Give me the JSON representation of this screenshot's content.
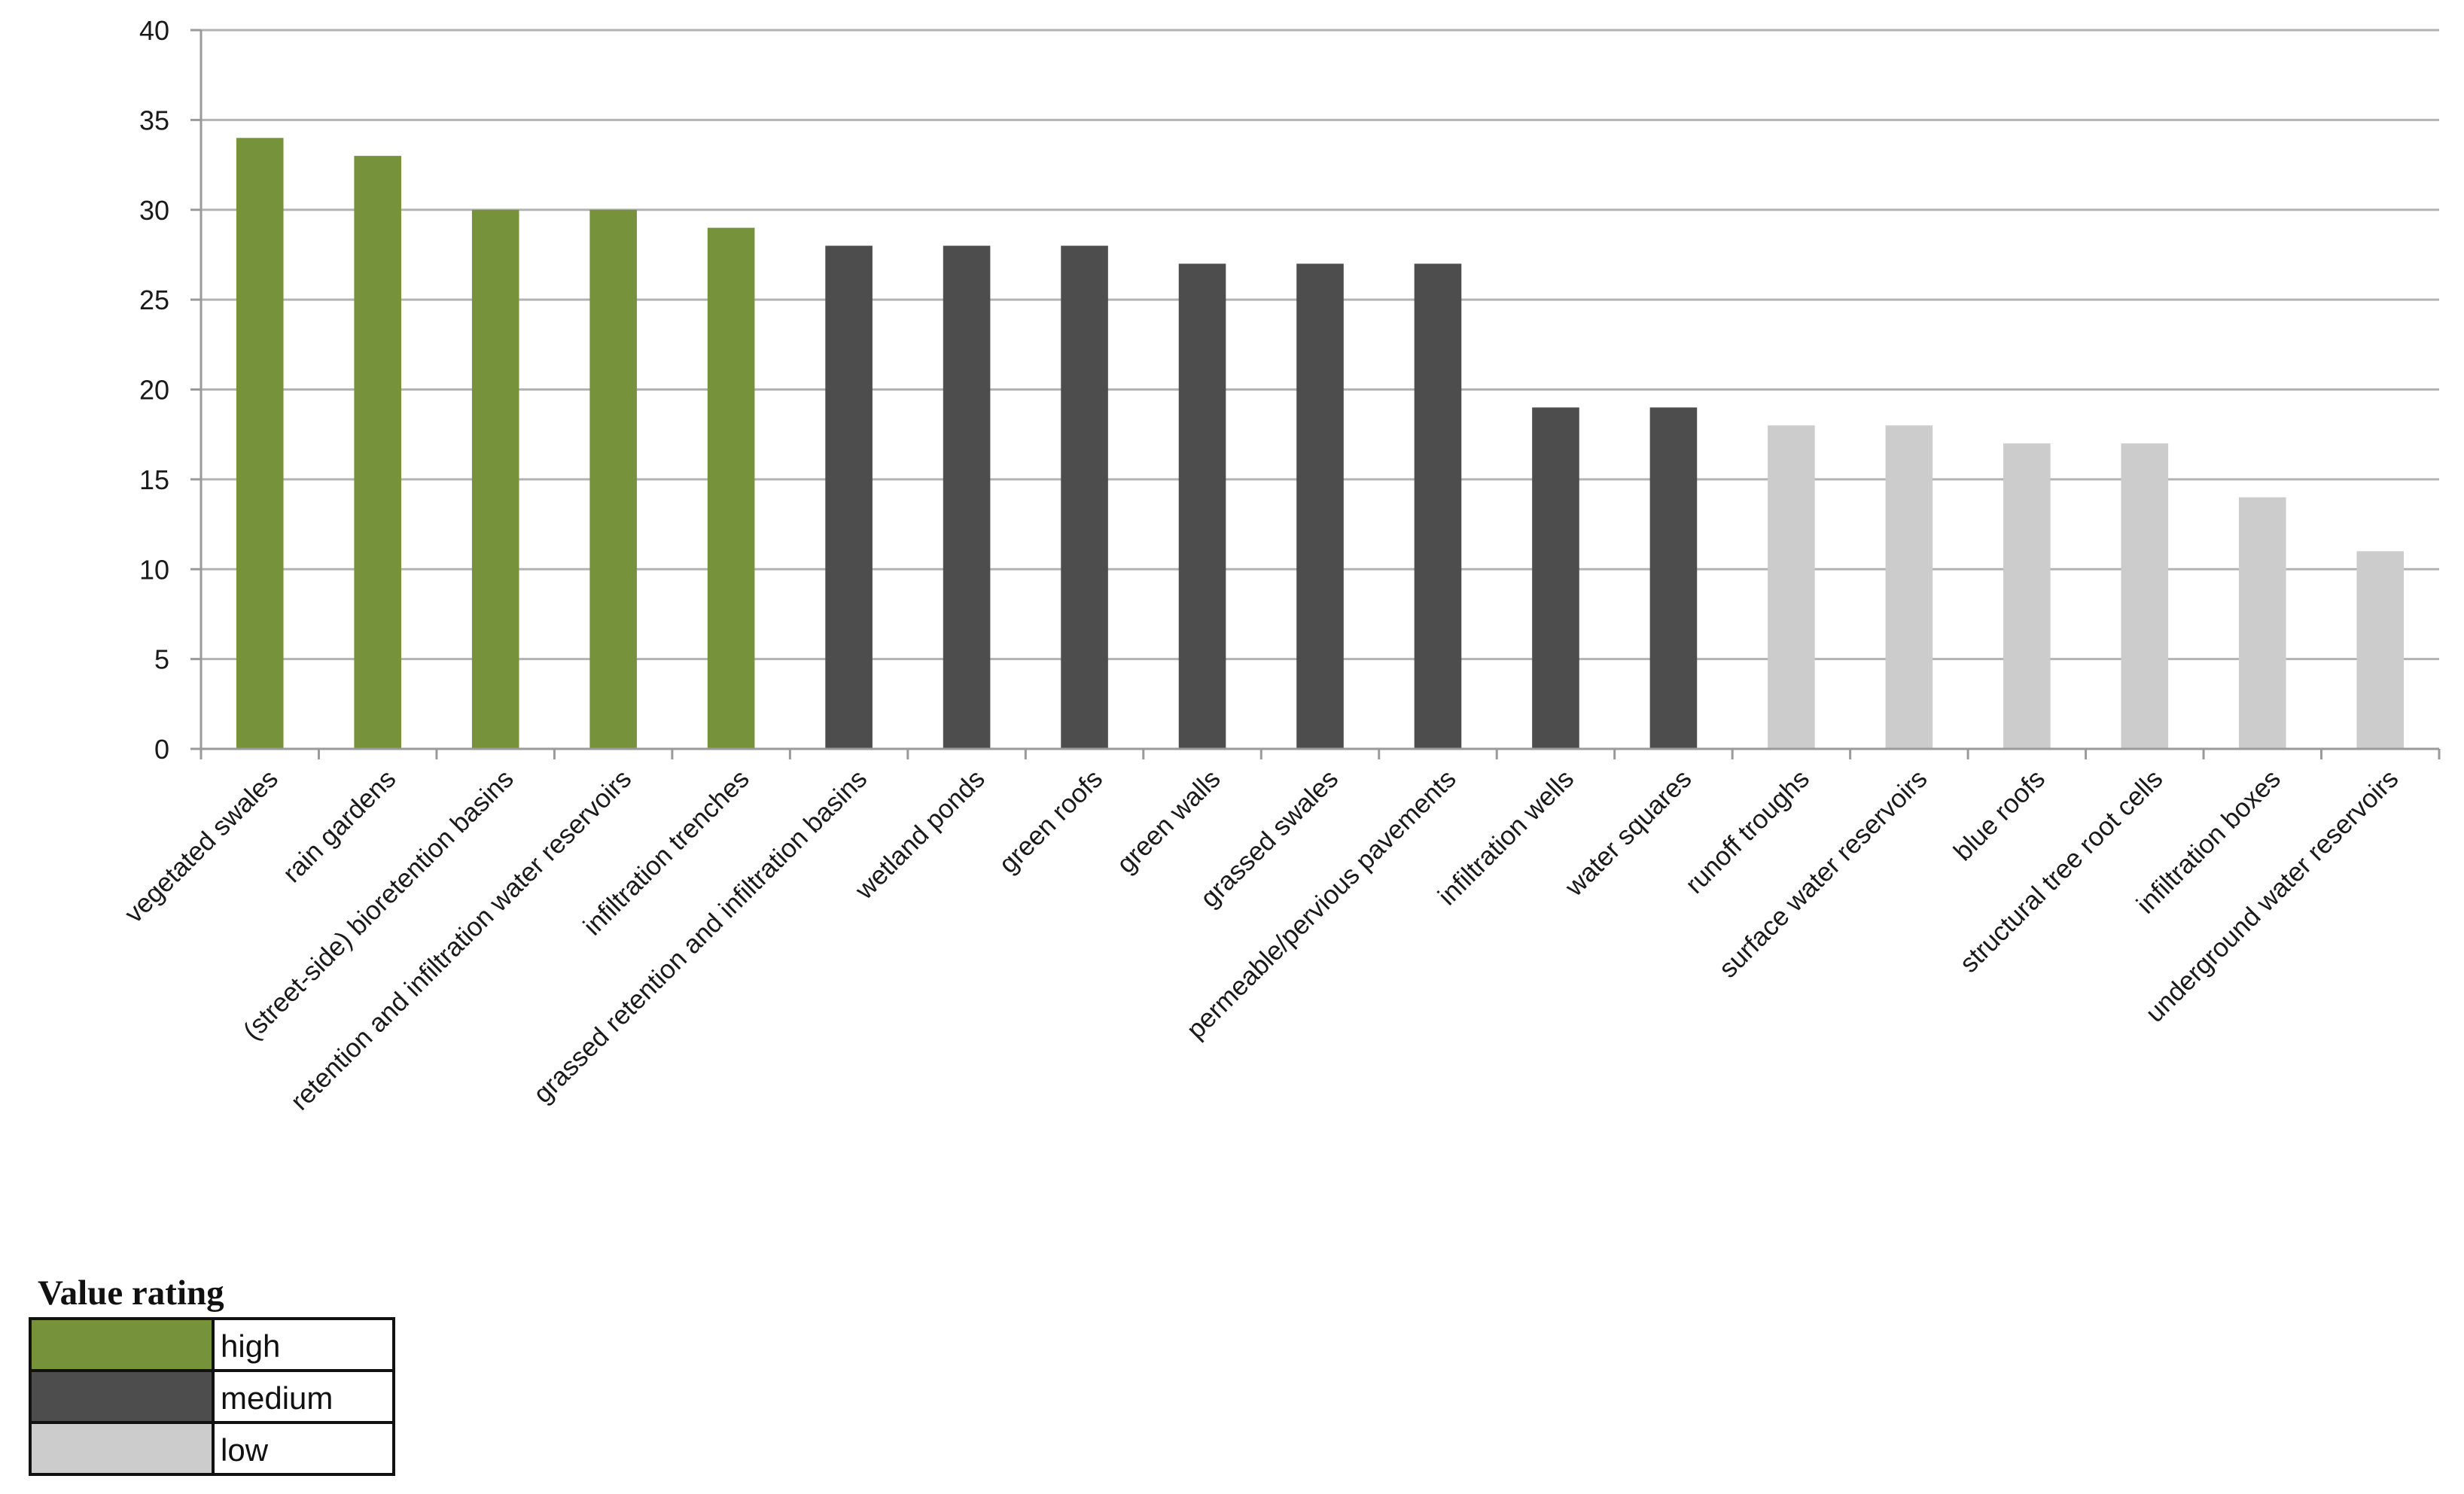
{
  "chart_data": {
    "type": "bar",
    "title": "",
    "xlabel": "",
    "ylabel": "",
    "ylim": [
      0,
      40
    ],
    "yticks": [
      0,
      5,
      10,
      15,
      20,
      25,
      30,
      35,
      40
    ],
    "grid": true,
    "categories": [
      "vegetated swales",
      "rain gardens",
      "(street-side) bioretention basins",
      "retention and infiltration water reservoirs",
      "infiltration trenches",
      "grassed retention and infiltration basins",
      "wetland ponds",
      "green roofs",
      "green walls",
      "grassed swales",
      "permeable/pervious pavements",
      "infiltration wells",
      "water squares",
      "runoff troughs",
      "surface water reservoirs",
      "blue roofs",
      "structural tree root cells",
      "infiltration boxes",
      "underground water reservoirs"
    ],
    "values": [
      34,
      33,
      30,
      30,
      29,
      28,
      28,
      28,
      27,
      27,
      27,
      19,
      19,
      18,
      18,
      17,
      17,
      14,
      11
    ],
    "ratings": [
      "high",
      "high",
      "high",
      "high",
      "high",
      "medium",
      "medium",
      "medium",
      "medium",
      "medium",
      "medium",
      "medium",
      "medium",
      "low",
      "low",
      "low",
      "low",
      "low",
      "low"
    ],
    "colors": {
      "high": "#76933c",
      "medium": "#4d4d4d",
      "low": "#cccccc"
    },
    "legend": {
      "title": "Value rating",
      "placement": "bottom-left",
      "entries": [
        {
          "key": "high",
          "label": "high"
        },
        {
          "key": "medium",
          "label": "medium"
        },
        {
          "key": "low",
          "label": "low"
        }
      ]
    }
  }
}
